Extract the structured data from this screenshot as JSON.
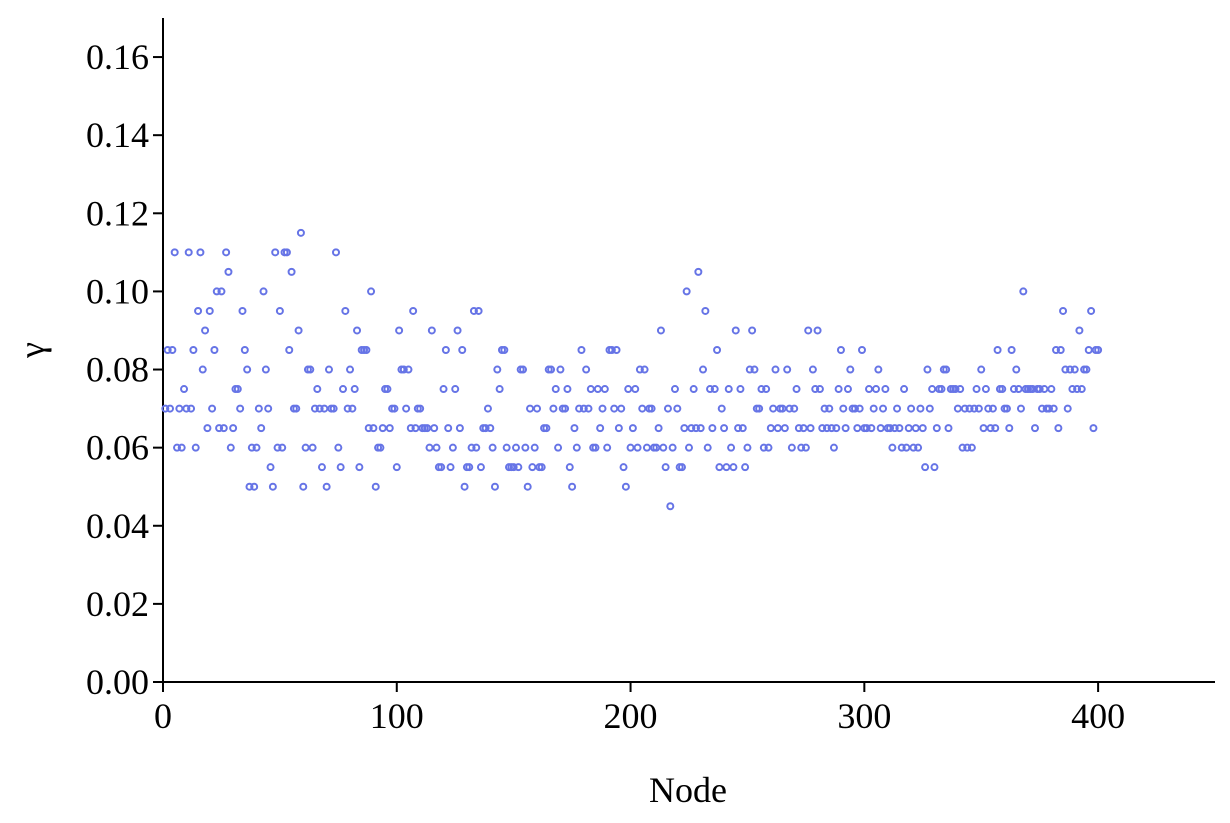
{
  "chart_data": {
    "type": "scatter",
    "x_label": "Node",
    "y_label": "γ",
    "xlim": [
      0,
      450
    ],
    "ylim": [
      0,
      0.17
    ],
    "xticks": [
      0,
      100,
      200,
      300,
      400
    ],
    "yticks": [
      {
        "value": 0,
        "label": "0.00"
      },
      0.02,
      0.04,
      0.06,
      0.08,
      {
        "value": 0.1,
        "label": "0.10"
      },
      0.12,
      0.14,
      0.16
    ],
    "series": [
      {
        "color": "#6674e6",
        "x": [
          1,
          2,
          3,
          4,
          5,
          6,
          7,
          8,
          9,
          10,
          11,
          12,
          13,
          14,
          15,
          16,
          17,
          18,
          19,
          20,
          21,
          22,
          23,
          24,
          25,
          26,
          27,
          28,
          29,
          30,
          31,
          32,
          33,
          34,
          35,
          36,
          37,
          38,
          39,
          40,
          41,
          42,
          43,
          44,
          45,
          46,
          47,
          48,
          49,
          50,
          51,
          52,
          53,
          54,
          55,
          56,
          57,
          58,
          59,
          60,
          61,
          62,
          63,
          64,
          65,
          66,
          67,
          68,
          69,
          70,
          71,
          72,
          73,
          74,
          75,
          76,
          77,
          78,
          79,
          80,
          81,
          82,
          83,
          84,
          85,
          86,
          87,
          88,
          89,
          90,
          91,
          92,
          93,
          94,
          95,
          96,
          97,
          98,
          99,
          100,
          101,
          102,
          103,
          104,
          105,
          106,
          107,
          108,
          109,
          110,
          111,
          112,
          113,
          114,
          115,
          116,
          117,
          118,
          119,
          120,
          121,
          122,
          123,
          124,
          125,
          126,
          127,
          128,
          129,
          130,
          131,
          132,
          133,
          134,
          135,
          136,
          137,
          138,
          139,
          140,
          141,
          142,
          143,
          144,
          145,
          146,
          147,
          148,
          149,
          150,
          151,
          152,
          153,
          154,
          155,
          156,
          157,
          158,
          159,
          160,
          161,
          162,
          163,
          164,
          165,
          166,
          167,
          168,
          169,
          170,
          171,
          172,
          173,
          174,
          175,
          176,
          177,
          178,
          179,
          180,
          181,
          182,
          183,
          184,
          185,
          186,
          187,
          188,
          189,
          190,
          191,
          192,
          193,
          194,
          195,
          196,
          197,
          198,
          199,
          200,
          201,
          202,
          203,
          204,
          205,
          206,
          207,
          208,
          209,
          210,
          211,
          212,
          213,
          214,
          215,
          216,
          217,
          218,
          219,
          220,
          221,
          222,
          223,
          224,
          225,
          226,
          227,
          228,
          229,
          230,
          231,
          232,
          233,
          234,
          235,
          236,
          237,
          238,
          239,
          240,
          241,
          242,
          243,
          244,
          245,
          246,
          247,
          248,
          249,
          250,
          251,
          252,
          253,
          254,
          255,
          256,
          257,
          258,
          259,
          260,
          261,
          262,
          263,
          264,
          265,
          266,
          267,
          268,
          269,
          270,
          271,
          272,
          273,
          274,
          275,
          276,
          277,
          278,
          279,
          280,
          281,
          282,
          283,
          284,
          285,
          286,
          287,
          288,
          289,
          290,
          291,
          292,
          293,
          294,
          295,
          296,
          297,
          298,
          299,
          300,
          301,
          302,
          303,
          304,
          305,
          306,
          307,
          308,
          309,
          310,
          311,
          312,
          313,
          314,
          315,
          316,
          317,
          318,
          319,
          320,
          321,
          322,
          323,
          324,
          325,
          326,
          327,
          328,
          329,
          330,
          331,
          332,
          333,
          334,
          335,
          336,
          337,
          338,
          339,
          340,
          341,
          342,
          343,
          344,
          345,
          346,
          347,
          348,
          349,
          350,
          351,
          352,
          353,
          354,
          355,
          356,
          357,
          358,
          359,
          360,
          361,
          362,
          363,
          364,
          365,
          366,
          367,
          368,
          369,
          370,
          371,
          372,
          373,
          374,
          375,
          376,
          377,
          378,
          379,
          380,
          381,
          382,
          383,
          384,
          385,
          386,
          387,
          388,
          389,
          390,
          391,
          392,
          393,
          394,
          395,
          396,
          397,
          398,
          399,
          400
        ],
        "values": [
          0.07,
          0.085,
          0.07,
          0.085,
          0.11,
          0.06,
          0.07,
          0.06,
          0.075,
          0.07,
          0.11,
          0.07,
          0.085,
          0.06,
          0.095,
          0.11,
          0.08,
          0.09,
          0.065,
          0.095,
          0.07,
          0.085,
          0.1,
          0.065,
          0.1,
          0.065,
          0.11,
          0.105,
          0.06,
          0.065,
          0.075,
          0.075,
          0.07,
          0.095,
          0.085,
          0.08,
          0.05,
          0.06,
          0.05,
          0.06,
          0.07,
          0.065,
          0.1,
          0.08,
          0.07,
          0.055,
          0.05,
          0.11,
          0.06,
          0.095,
          0.06,
          0.11,
          0.11,
          0.085,
          0.105,
          0.07,
          0.07,
          0.09,
          0.115,
          0.05,
          0.06,
          0.08,
          0.08,
          0.06,
          0.07,
          0.075,
          0.07,
          0.055,
          0.07,
          0.05,
          0.08,
          0.07,
          0.07,
          0.11,
          0.06,
          0.055,
          0.075,
          0.095,
          0.07,
          0.08,
          0.07,
          0.075,
          0.09,
          0.055,
          0.085,
          0.085,
          0.085,
          0.065,
          0.1,
          0.065,
          0.05,
          0.06,
          0.06,
          0.065,
          0.075,
          0.075,
          0.065,
          0.07,
          0.07,
          0.055,
          0.09,
          0.08,
          0.08,
          0.07,
          0.08,
          0.065,
          0.095,
          0.065,
          0.07,
          0.07,
          0.065,
          0.065,
          0.065,
          0.06,
          0.09,
          0.065,
          0.06,
          0.055,
          0.055,
          0.075,
          0.085,
          0.065,
          0.055,
          0.06,
          0.075,
          0.09,
          0.065,
          0.085,
          0.05,
          0.055,
          0.055,
          0.06,
          0.095,
          0.06,
          0.095,
          0.055,
          0.065,
          0.065,
          0.07,
          0.065,
          0.06,
          0.05,
          0.08,
          0.075,
          0.085,
          0.085,
          0.06,
          0.055,
          0.055,
          0.055,
          0.06,
          0.055,
          0.08,
          0.08,
          0.06,
          0.05,
          0.07,
          0.055,
          0.06,
          0.07,
          0.055,
          0.055,
          0.065,
          0.065,
          0.08,
          0.08,
          0.07,
          0.075,
          0.06,
          0.08,
          0.07,
          0.07,
          0.075,
          0.055,
          0.05,
          0.065,
          0.06,
          0.07,
          0.085,
          0.07,
          0.08,
          0.07,
          0.075,
          0.06,
          0.06,
          0.075,
          0.065,
          0.07,
          0.075,
          0.06,
          0.085,
          0.085,
          0.07,
          0.085,
          0.065,
          0.07,
          0.055,
          0.05,
          0.075,
          0.06,
          0.065,
          0.075,
          0.06,
          0.08,
          0.07,
          0.08,
          0.06,
          0.07,
          0.07,
          0.06,
          0.06,
          0.065,
          0.09,
          0.06,
          0.055,
          0.07,
          0.045,
          0.06,
          0.075,
          0.07,
          0.055,
          0.055,
          0.065,
          0.1,
          0.06,
          0.065,
          0.075,
          0.065,
          0.105,
          0.065,
          0.08,
          0.095,
          0.06,
          0.075,
          0.065,
          0.075,
          0.085,
          0.055,
          0.07,
          0.065,
          0.055,
          0.075,
          0.06,
          0.055,
          0.09,
          0.065,
          0.075,
          0.065,
          0.055,
          0.06,
          0.08,
          0.09,
          0.08,
          0.07,
          0.07,
          0.075,
          0.06,
          0.075,
          0.06,
          0.065,
          0.07,
          0.08,
          0.065,
          0.07,
          0.07,
          0.065,
          0.08,
          0.07,
          0.06,
          0.07,
          0.075,
          0.065,
          0.06,
          0.065,
          0.06,
          0.09,
          0.065,
          0.08,
          0.075,
          0.09,
          0.075,
          0.065,
          0.07,
          0.065,
          0.07,
          0.065,
          0.06,
          0.065,
          0.075,
          0.085,
          0.07,
          0.065,
          0.075,
          0.08,
          0.07,
          0.07,
          0.065,
          0.07,
          0.085,
          0.065,
          0.065,
          0.075,
          0.065,
          0.07,
          0.075,
          0.08,
          0.065,
          0.07,
          0.075,
          0.065,
          0.065,
          0.06,
          0.065,
          0.07,
          0.065,
          0.06,
          0.075,
          0.06,
          0.065,
          0.07,
          0.06,
          0.065,
          0.06,
          0.07,
          0.065,
          0.055,
          0.08,
          0.07,
          0.075,
          0.055,
          0.065,
          0.075,
          0.075,
          0.08,
          0.08,
          0.065,
          0.075,
          0.075,
          0.075,
          0.07,
          0.075,
          0.06,
          0.07,
          0.06,
          0.07,
          0.06,
          0.07,
          0.075,
          0.07,
          0.08,
          0.065,
          0.075,
          0.07,
          0.065,
          0.07,
          0.065,
          0.085,
          0.075,
          0.075,
          0.07,
          0.07,
          0.065,
          0.085,
          0.075,
          0.08,
          0.075,
          0.07,
          0.1,
          0.075,
          0.075,
          0.075,
          0.075,
          0.065,
          0.075,
          0.075,
          0.07,
          0.075,
          0.07,
          0.07,
          0.075,
          0.07,
          0.085,
          0.065,
          0.085,
          0.095,
          0.08,
          0.07,
          0.08,
          0.075,
          0.08,
          0.075,
          0.09,
          0.075,
          0.08,
          0.08,
          0.085,
          0.095,
          0.065,
          0.085,
          0.085
        ]
      }
    ]
  }
}
